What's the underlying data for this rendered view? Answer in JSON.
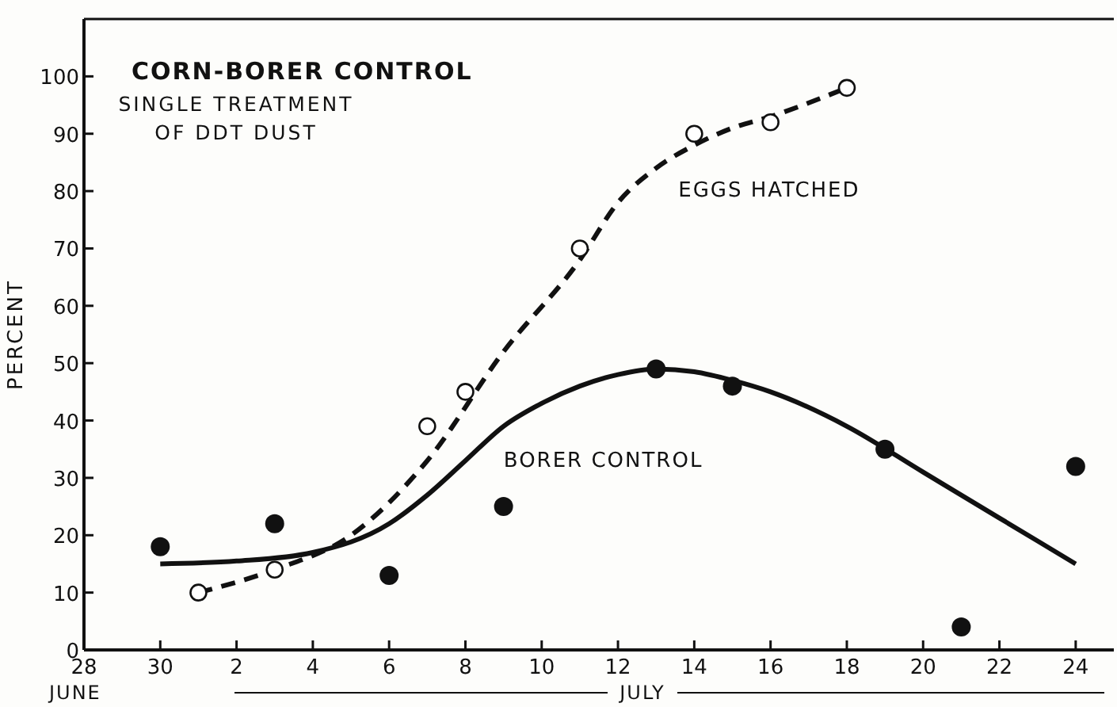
{
  "chart_data": {
    "type": "line",
    "title": "CORN-BORER CONTROL",
    "subtitle": "SINGLE TREATMENT OF DDT DUST",
    "ylabel": "PERCENT",
    "annotations": [
      "JUNE",
      "JULY"
    ],
    "xlim": [
      "--06-28",
      "--07-25"
    ],
    "xticks": [
      {
        "value": "--06-28",
        "label": "28"
      },
      {
        "value": "--06-30",
        "label": "30"
      },
      {
        "value": "--07-02",
        "label": "2"
      },
      {
        "value": "--07-04",
        "label": "4"
      },
      {
        "value": "--07-06",
        "label": "6"
      },
      {
        "value": "--07-08",
        "label": "8"
      },
      {
        "value": "--07-10",
        "label": "10"
      },
      {
        "value": "--07-12",
        "label": "12"
      },
      {
        "value": "--07-14",
        "label": "14"
      },
      {
        "value": "--07-16",
        "label": "16"
      },
      {
        "value": "--07-18",
        "label": "18"
      },
      {
        "value": "--07-20",
        "label": "20"
      },
      {
        "value": "--07-22",
        "label": "22"
      },
      {
        "value": "--07-24",
        "label": "24"
      }
    ],
    "ylim": [
      0,
      110
    ],
    "yticks": [
      0,
      10,
      20,
      30,
      40,
      50,
      60,
      70,
      80,
      90,
      100
    ],
    "grid": false,
    "legend": false,
    "series": [
      {
        "type": "line",
        "name": "EGGS HATCHED",
        "color": "#111111",
        "line_style": "dashed",
        "marker": "none",
        "x": [
          "--07-01",
          "--07-03",
          "--07-05",
          "--07-07",
          "--07-09",
          "--07-11",
          "--07-12",
          "--07-13",
          "--07-14",
          "--07-15",
          "--07-16",
          "--07-18"
        ],
        "values": [
          10,
          14,
          20,
          33,
          52,
          68,
          78,
          84,
          88,
          91,
          93,
          98
        ]
      },
      {
        "type": "scatter",
        "color": "#111111",
        "marker": "circle",
        "x": [
          "--07-01",
          "--07-03",
          "--07-07",
          "--07-08",
          "--07-11",
          "--07-14",
          "--07-16",
          "--07-18"
        ],
        "values": [
          10,
          14,
          39,
          45,
          70,
          90,
          92,
          98
        ]
      },
      {
        "type": "line",
        "name": "BORER CONTROL",
        "color": "#111111",
        "line_style": "solid",
        "marker": "none",
        "x": [
          "--06-30",
          "--07-02",
          "--07-04",
          "--07-06",
          "--07-07",
          "--07-08",
          "--07-09",
          "--07-10",
          "--07-11",
          "--07-12",
          "--07-13",
          "--07-14",
          "--07-15",
          "--07-16",
          "--07-18",
          "--07-20",
          "--07-22",
          "--07-24"
        ],
        "values": [
          15,
          15.5,
          17,
          22,
          27,
          33,
          39,
          43,
          46,
          48,
          49,
          48.5,
          47,
          45,
          39,
          31,
          23,
          15
        ]
      },
      {
        "type": "scatter",
        "color": "#111111",
        "marker": "circle",
        "x": [
          "--06-30",
          "--07-03",
          "--07-06",
          "--07-09",
          "--07-13",
          "--07-15",
          "--07-19",
          "--07-21",
          "--07-24"
        ],
        "values": [
          18,
          22,
          13,
          25,
          49,
          46,
          35,
          4,
          32
        ]
      }
    ]
  }
}
